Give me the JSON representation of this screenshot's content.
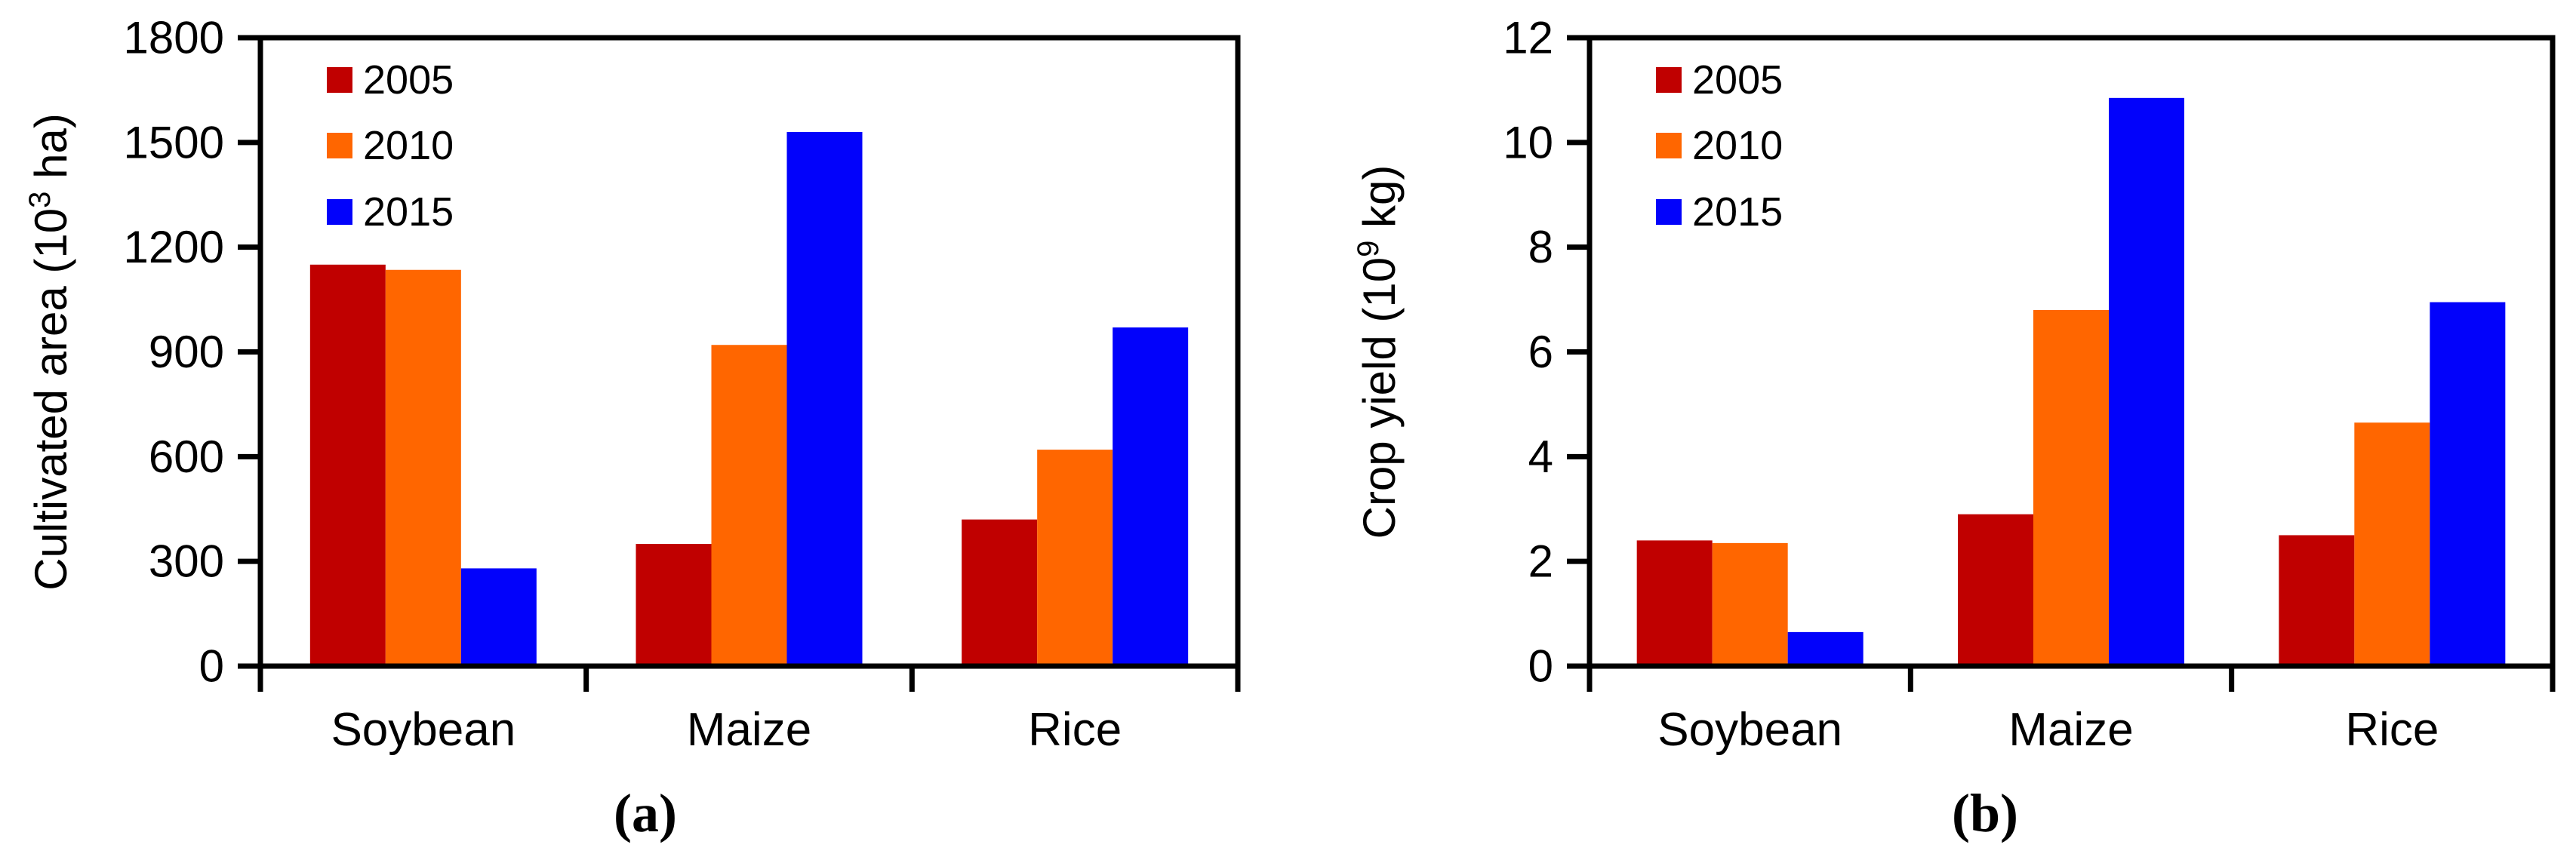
{
  "figure": {
    "background": "#ffffff",
    "axis_color": "#000000",
    "panels": [
      {
        "caption": "(a)",
        "ylabel_prefix": "Cultivated area (10",
        "ylabel_sup": "3",
        "ylabel_suffix": " ha)"
      },
      {
        "caption": "(b)",
        "ylabel_prefix": "Crop yield (10",
        "ylabel_sup": "9",
        "ylabel_suffix": " kg)"
      }
    ]
  },
  "chart_data": [
    {
      "type": "bar",
      "panel": "a",
      "title": "",
      "xlabel": "",
      "ylabel": "Cultivated area (10^3 ha)",
      "categories": [
        "Soybean",
        "Maize",
        "Rice"
      ],
      "series": [
        {
          "name": "2005",
          "color": "#C00000",
          "values": [
            1150,
            350,
            420
          ]
        },
        {
          "name": "2010",
          "color": "#FF6600",
          "values": [
            1135,
            920,
            620
          ]
        },
        {
          "name": "2015",
          "color": "#0202FB",
          "values": [
            280,
            1530,
            970
          ]
        }
      ],
      "ylim": [
        0,
        1800
      ],
      "yticks": [
        0,
        300,
        600,
        900,
        1200,
        1500,
        1800
      ],
      "grid": false,
      "legend_position": "top-left",
      "caption": "(a)"
    },
    {
      "type": "bar",
      "panel": "b",
      "title": "",
      "xlabel": "",
      "ylabel": "Crop yield (10^9 kg)",
      "categories": [
        "Soybean",
        "Maize",
        "Rice"
      ],
      "series": [
        {
          "name": "2005",
          "color": "#C00000",
          "values": [
            2.4,
            2.9,
            2.5
          ]
        },
        {
          "name": "2010",
          "color": "#FF6600",
          "values": [
            2.35,
            6.8,
            4.65
          ]
        },
        {
          "name": "2015",
          "color": "#0202FB",
          "values": [
            0.65,
            10.85,
            6.95
          ]
        }
      ],
      "ylim": [
        0,
        12
      ],
      "yticks": [
        0,
        2,
        4,
        6,
        8,
        10,
        12
      ],
      "grid": false,
      "legend_position": "top-left",
      "caption": "(b)"
    }
  ]
}
